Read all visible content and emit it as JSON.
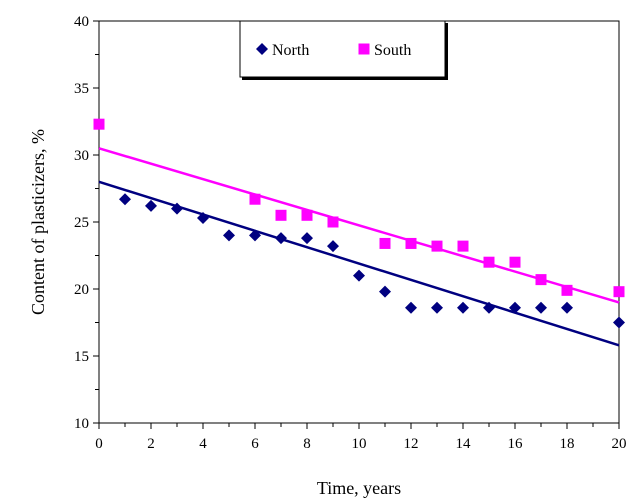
{
  "chart_data": {
    "type": "scatter",
    "title": "",
    "xlabel": "Time, years",
    "ylabel": "Content of plasticizers, %",
    "xlim": [
      0,
      20
    ],
    "ylim": [
      10,
      40
    ],
    "xticks": [
      0,
      2,
      4,
      6,
      8,
      10,
      12,
      14,
      16,
      18,
      20
    ],
    "yticks": [
      10,
      15,
      20,
      25,
      30,
      35,
      40
    ],
    "x_minor_step": 1,
    "y_minor_step": 2.5,
    "grid": false,
    "legend_position": "top-center",
    "series": [
      {
        "name": "North",
        "marker": "diamond",
        "color": "#000080",
        "points": [
          [
            1,
            26.7
          ],
          [
            2,
            26.2
          ],
          [
            3,
            26.0
          ],
          [
            4,
            25.3
          ],
          [
            5,
            24.0
          ],
          [
            6,
            24.0
          ],
          [
            7,
            23.8
          ],
          [
            8,
            23.8
          ],
          [
            9,
            23.2
          ],
          [
            10,
            21.0
          ],
          [
            11,
            19.8
          ],
          [
            12,
            18.6
          ],
          [
            13,
            18.6
          ],
          [
            14,
            18.6
          ],
          [
            15,
            18.6
          ],
          [
            16,
            18.6
          ],
          [
            17,
            18.6
          ],
          [
            18,
            18.6
          ],
          [
            20,
            17.5
          ]
        ],
        "trendline": {
          "x": [
            0,
            20
          ],
          "y": [
            28.0,
            15.8
          ]
        }
      },
      {
        "name": "South",
        "marker": "square",
        "color": "#ff00ff",
        "points": [
          [
            0,
            32.3
          ],
          [
            6,
            26.7
          ],
          [
            7,
            25.5
          ],
          [
            8,
            25.5
          ],
          [
            9,
            25.0
          ],
          [
            11,
            23.4
          ],
          [
            12,
            23.4
          ],
          [
            13,
            23.2
          ],
          [
            14,
            23.2
          ],
          [
            15,
            22.0
          ],
          [
            16,
            22.0
          ],
          [
            17,
            20.7
          ],
          [
            18,
            19.9
          ],
          [
            20,
            19.8
          ]
        ],
        "trendline": {
          "x": [
            0,
            20
          ],
          "y": [
            30.5,
            19.0
          ]
        }
      }
    ]
  }
}
